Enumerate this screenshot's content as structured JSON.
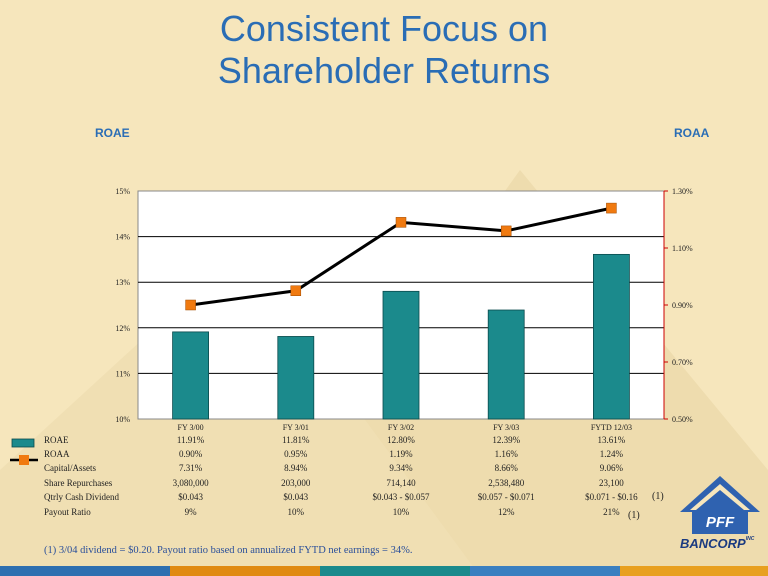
{
  "title_line1": "Consistent Focus on",
  "title_line2": "Shareholder Returns",
  "left_axis_title": "ROAE",
  "right_axis_title": "ROAA",
  "chart_data": {
    "type": "bar",
    "categories": [
      "FY 3/00",
      "FY 3/01",
      "FY 3/02",
      "FY 3/03",
      "FYTD 12/03"
    ],
    "series": [
      {
        "name": "ROAE",
        "type": "bar",
        "axis": "left",
        "values": [
          11.91,
          11.81,
          12.8,
          12.39,
          13.61
        ],
        "color": "#1b8a8c"
      },
      {
        "name": "ROAA",
        "type": "line",
        "axis": "right",
        "values": [
          0.9,
          0.95,
          1.19,
          1.16,
          1.24
        ],
        "color": "#f07a10"
      }
    ],
    "y_left": {
      "min": 10,
      "max": 15,
      "ticks": [
        "10%",
        "11%",
        "12%",
        "13%",
        "14%",
        "15%"
      ]
    },
    "y_right": {
      "min": 0.5,
      "max": 1.3,
      "ticks": [
        "0.50%",
        "0.70%",
        "0.90%",
        "1.10%",
        "1.30%"
      ]
    },
    "grid": true,
    "legend": "table-left"
  },
  "table": {
    "rows": [
      {
        "label": "ROAE",
        "values": [
          "11.91%",
          "11.81%",
          "12.80%",
          "12.39%",
          "13.61%"
        ]
      },
      {
        "label": "ROAA",
        "values": [
          "0.90%",
          "0.95%",
          "1.19%",
          "1.16%",
          "1.24%"
        ]
      },
      {
        "label": "Capital/Assets",
        "values": [
          "7.31%",
          "8.94%",
          "9.34%",
          "8.66%",
          "9.06%"
        ]
      },
      {
        "label": "Share  Repurchases",
        "values": [
          "3,080,000",
          "203,000",
          "714,140",
          "2,538,480",
          "23,100"
        ]
      },
      {
        "label": "Qtrly Cash Dividend",
        "values": [
          "$0.043",
          "$0.043",
          "$0.043 - $0.057",
          "$0.057 - $0.071",
          "$0.071 - $0.16"
        ]
      },
      {
        "label": "Payout Ratio",
        "values": [
          "9%",
          "10%",
          "10%",
          "12%",
          "21%"
        ]
      }
    ],
    "dividend_note_mark": "(1)",
    "payout_note_mark": "(1)"
  },
  "footnote": "(1) 3/04 dividend = $0.20. Payout ratio based on annualized FYTD net earnings = 34%.",
  "logo": {
    "mark": "PFF",
    "name": "BANCORP",
    "suffix": "INC"
  },
  "colors": {
    "accent": "#2a6db5",
    "bar": "#1b8a8c",
    "marker": "#f07a10",
    "line": "#000000"
  }
}
